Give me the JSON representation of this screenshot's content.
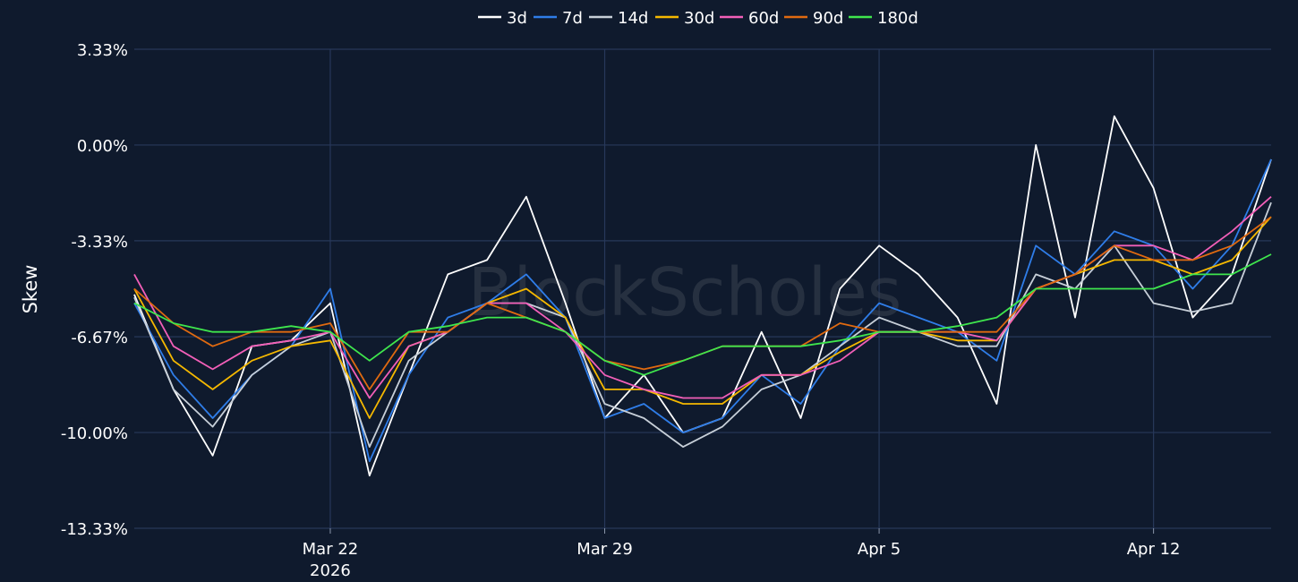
{
  "watermark": "BlockScholes",
  "chart_data": {
    "type": "line",
    "title": "",
    "xlabel": "",
    "ylabel": "Skew",
    "x_range_days": [
      "2026-03-17",
      "2026-04-15"
    ],
    "x_ticks": [
      {
        "date": "2026-03-22",
        "label": "Mar 22",
        "sublabel": "2026"
      },
      {
        "date": "2026-03-29",
        "label": "Mar 29",
        "sublabel": ""
      },
      {
        "date": "2026-04-05",
        "label": "Apr 5",
        "sublabel": ""
      },
      {
        "date": "2026-04-12",
        "label": "Apr 12",
        "sublabel": ""
      }
    ],
    "ylim": [
      -13.33,
      3.33
    ],
    "y_ticks": [
      {
        "value": 3.33,
        "label": "3.33%"
      },
      {
        "value": 0,
        "label": "0.00%"
      },
      {
        "value": -3.33,
        "label": "-3.33%"
      },
      {
        "value": -6.67,
        "label": "-6.67%"
      },
      {
        "value": -10,
        "label": "-10.00%"
      },
      {
        "value": -13.33,
        "label": "-13.33%"
      }
    ],
    "grid": true,
    "legend_position": "top-center",
    "x": [
      "2026-03-17",
      "2026-03-18",
      "2026-03-19",
      "2026-03-20",
      "2026-03-21",
      "2026-03-22",
      "2026-03-23",
      "2026-03-24",
      "2026-03-25",
      "2026-03-26",
      "2026-03-27",
      "2026-03-28",
      "2026-03-29",
      "2026-03-30",
      "2026-03-31",
      "2026-04-01",
      "2026-04-02",
      "2026-04-03",
      "2026-04-04",
      "2026-04-05",
      "2026-04-06",
      "2026-04-07",
      "2026-04-08",
      "2026-04-09",
      "2026-04-10",
      "2026-04-11",
      "2026-04-12",
      "2026-04-13",
      "2026-04-14",
      "2026-04-15"
    ],
    "series": [
      {
        "name": "3d",
        "color": "#ffffff",
        "values": [
          -5.2,
          -8.5,
          -10.8,
          -7.0,
          -6.8,
          -5.5,
          -11.5,
          -8.0,
          -4.5,
          -4.0,
          -1.8,
          -5.5,
          -9.5,
          -8.0,
          -10.0,
          -9.5,
          -6.5,
          -9.5,
          -5.0,
          -3.5,
          -4.5,
          -6.0,
          -9.0,
          0.0,
          -6.0,
          1.0,
          -1.5,
          -6.0,
          -4.5,
          -0.5
        ]
      },
      {
        "name": "7d",
        "color": "#2f7de8",
        "values": [
          -5.5,
          -8.0,
          -9.5,
          -8.0,
          -7.0,
          -5.0,
          -11.0,
          -8.0,
          -6.0,
          -5.5,
          -4.5,
          -6.0,
          -9.5,
          -9.0,
          -10.0,
          -9.5,
          -8.0,
          -9.0,
          -7.0,
          -5.5,
          -6.0,
          -6.5,
          -7.5,
          -3.5,
          -4.5,
          -3.0,
          -3.5,
          -5.0,
          -3.5,
          -0.5
        ]
      },
      {
        "name": "14d",
        "color": "#c7cfd8",
        "values": [
          -5.3,
          -8.5,
          -9.8,
          -8.0,
          -7.0,
          -6.5,
          -10.5,
          -7.5,
          -6.5,
          -5.5,
          -5.5,
          -6.0,
          -9.0,
          -9.5,
          -10.5,
          -9.8,
          -8.5,
          -8.0,
          -7.0,
          -6.0,
          -6.5,
          -7.0,
          -7.0,
          -4.5,
          -5.0,
          -3.5,
          -5.5,
          -5.8,
          -5.5,
          -2.0
        ]
      },
      {
        "name": "30d",
        "color": "#f5b800",
        "values": [
          -5.0,
          -7.5,
          -8.5,
          -7.5,
          -7.0,
          -6.8,
          -9.5,
          -7.0,
          -6.5,
          -5.5,
          -5.0,
          -6.0,
          -8.5,
          -8.5,
          -9.0,
          -9.0,
          -8.0,
          -8.0,
          -7.2,
          -6.5,
          -6.5,
          -6.8,
          -6.8,
          -5.0,
          -4.5,
          -4.0,
          -4.0,
          -4.5,
          -4.0,
          -2.5
        ]
      },
      {
        "name": "60d",
        "color": "#f25fb8",
        "values": [
          -4.5,
          -7.0,
          -7.8,
          -7.0,
          -6.8,
          -6.5,
          -8.8,
          -7.0,
          -6.5,
          -5.5,
          -5.5,
          -6.5,
          -8.0,
          -8.5,
          -8.8,
          -8.8,
          -8.0,
          -8.0,
          -7.5,
          -6.5,
          -6.5,
          -6.5,
          -6.8,
          -5.0,
          -4.5,
          -3.5,
          -3.5,
          -4.0,
          -3.0,
          -1.8
        ]
      },
      {
        "name": "90d",
        "color": "#e06a10",
        "values": [
          -5.0,
          -6.2,
          -7.0,
          -6.5,
          -6.5,
          -6.2,
          -8.5,
          -6.5,
          -6.5,
          -5.5,
          -6.0,
          -6.5,
          -7.5,
          -7.8,
          -7.5,
          -7.0,
          -7.0,
          -7.0,
          -6.2,
          -6.5,
          -6.5,
          -6.5,
          -6.5,
          -5.0,
          -4.5,
          -3.5,
          -4.0,
          -4.0,
          -3.5,
          -2.5
        ]
      },
      {
        "name": "180d",
        "color": "#3fe64d",
        "values": [
          -5.5,
          -6.2,
          -6.5,
          -6.5,
          -6.3,
          -6.5,
          -7.5,
          -6.5,
          -6.3,
          -6.0,
          -6.0,
          -6.5,
          -7.5,
          -8.0,
          -7.5,
          -7.0,
          -7.0,
          -7.0,
          -6.8,
          -6.5,
          -6.5,
          -6.3,
          -6.0,
          -5.0,
          -5.0,
          -5.0,
          -5.0,
          -4.5,
          -4.5,
          -3.8
        ]
      }
    ]
  }
}
